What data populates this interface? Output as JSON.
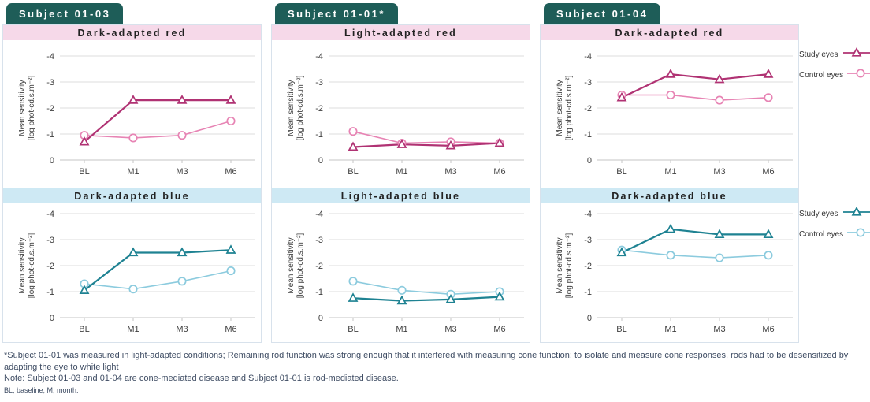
{
  "figure": {
    "legend": {
      "study_label": "Study eyes",
      "control_label": "Control eyes"
    },
    "footnotes": {
      "asterisk": "*Subject 01-01 was measured in light-adapted conditions; Remaining rod function was strong enough that it interfered with measuring cone function; to isolate and measure cone responses, rods had to be desensitized by adapting the eye to white light",
      "note": "Note: Subject 01-03 and 01-04 are cone-mediated disease and Subject 01-01 is rod-mediated disease.",
      "abbreviations": "BL, baseline; M, month."
    }
  },
  "colors": {
    "badge_bg": "#1e5d58",
    "badge_text": "#ffffff",
    "red_header_bg": "#f6d9e9",
    "blue_header_bg": "#cee9f4",
    "header_text": "#222222",
    "grid": "#dedede",
    "zero_line": "#c6c6c6",
    "axis_text": "#404040",
    "panel_border": "#d8e2ec",
    "footnote_text": "#3e4c63",
    "study_red": "#b03273",
    "control_red": "#e784b4",
    "study_blue": "#1e8292",
    "control_blue": "#8ccbde"
  },
  "chart_data": {
    "type": "line",
    "x_categories": [
      "BL",
      "M1",
      "M3",
      "M6"
    ],
    "y_ticks": [
      -4,
      -3,
      -2,
      -1,
      0
    ],
    "ylim": [
      0,
      -4
    ],
    "y_axis_inverted": true,
    "grid": true,
    "legend_position": "right",
    "ylabel_line1": "Mean sensitivity",
    "ylabel_line2": "[log phot-cd.s.m⁻²]",
    "panels": [
      {
        "subject": "Subject 01-03",
        "charts": [
          {
            "title": "Dark-adapted red",
            "theme": "red",
            "series": [
              {
                "name": "Study eyes",
                "marker": "triangle",
                "color": "#b03273",
                "values": [
                  -0.7,
                  -2.3,
                  -2.3,
                  -2.3
                ]
              },
              {
                "name": "Control eyes",
                "marker": "circle",
                "color": "#e784b4",
                "values": [
                  -0.95,
                  -0.85,
                  -0.95,
                  -1.5
                ]
              }
            ]
          },
          {
            "title": "Dark-adapted blue",
            "theme": "blue",
            "series": [
              {
                "name": "Study eyes",
                "marker": "triangle",
                "color": "#1e8292",
                "values": [
                  -1.05,
                  -2.5,
                  -2.5,
                  -2.6
                ]
              },
              {
                "name": "Control eyes",
                "marker": "circle",
                "color": "#8ccbde",
                "values": [
                  -1.3,
                  -1.1,
                  -1.4,
                  -1.8
                ]
              }
            ]
          }
        ]
      },
      {
        "subject": "Subject 01-01*",
        "charts": [
          {
            "title": "Light-adapted red",
            "theme": "red",
            "series": [
              {
                "name": "Study eyes",
                "marker": "triangle",
                "color": "#b03273",
                "values": [
                  -0.5,
                  -0.6,
                  -0.55,
                  -0.65
                ]
              },
              {
                "name": "Control eyes",
                "marker": "circle",
                "color": "#e784b4",
                "values": [
                  -1.1,
                  -0.65,
                  -0.7,
                  -0.65
                ]
              }
            ]
          },
          {
            "title": "Light-adapted blue",
            "theme": "blue",
            "series": [
              {
                "name": "Study eyes",
                "marker": "triangle",
                "color": "#1e8292",
                "values": [
                  -0.75,
                  -0.65,
                  -0.7,
                  -0.8
                ]
              },
              {
                "name": "Control eyes",
                "marker": "circle",
                "color": "#8ccbde",
                "values": [
                  -1.4,
                  -1.05,
                  -0.9,
                  -1.0
                ]
              }
            ]
          }
        ]
      },
      {
        "subject": "Subject 01-04",
        "charts": [
          {
            "title": "Dark-adapted red",
            "theme": "red",
            "series": [
              {
                "name": "Study eyes",
                "marker": "triangle",
                "color": "#b03273",
                "values": [
                  -2.4,
                  -3.3,
                  -3.1,
                  -3.3
                ]
              },
              {
                "name": "Control eyes",
                "marker": "circle",
                "color": "#e784b4",
                "values": [
                  -2.5,
                  -2.5,
                  -2.3,
                  -2.4
                ]
              }
            ]
          },
          {
            "title": "Dark-adapted blue",
            "theme": "blue",
            "series": [
              {
                "name": "Study eyes",
                "marker": "triangle",
                "color": "#1e8292",
                "values": [
                  -2.5,
                  -3.4,
                  -3.2,
                  -3.2
                ]
              },
              {
                "name": "Control eyes",
                "marker": "circle",
                "color": "#8ccbde",
                "values": [
                  -2.6,
                  -2.4,
                  -2.3,
                  -2.4
                ]
              }
            ]
          }
        ]
      }
    ]
  }
}
